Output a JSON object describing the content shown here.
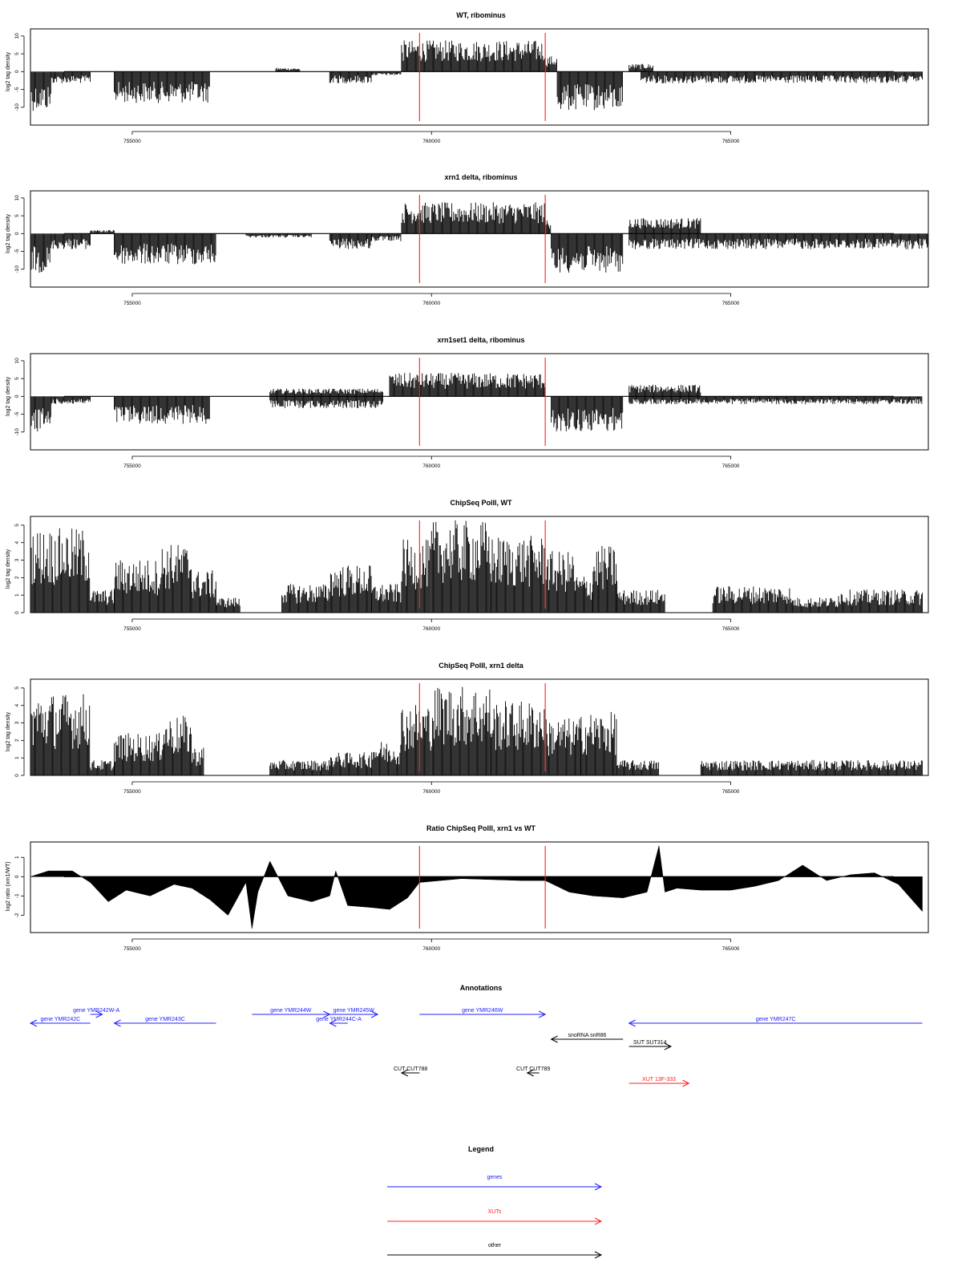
{
  "chart_data": [
    {
      "type": "area",
      "title": "WT, ribominus",
      "ylabel": "log2 tag density",
      "xlim": [
        753300,
        768300
      ],
      "ylim": [
        -15,
        12
      ],
      "xticks": [
        755000,
        760000,
        765000
      ],
      "yticks": [
        -10,
        -5,
        0,
        5,
        10
      ],
      "markers": [
        759800,
        761900
      ],
      "segments": [
        {
          "x": [
            753300,
            753650
          ],
          "y": -10
        },
        {
          "x": [
            753650,
            754300
          ],
          "y": -3
        },
        {
          "x": [
            754700,
            756300
          ],
          "y": -8
        },
        {
          "x": [
            757400,
            757800
          ],
          "y": 1
        },
        {
          "x": [
            758300,
            759000
          ],
          "y": -3
        },
        {
          "x": [
            759000,
            759500
          ],
          "y": -1
        },
        {
          "x": [
            759500,
            761900
          ],
          "y": 8
        },
        {
          "x": [
            761900,
            762100
          ],
          "y": 4
        },
        {
          "x": [
            762100,
            763200
          ],
          "y": -10
        },
        {
          "x": [
            763300,
            763700
          ],
          "y": 2
        },
        {
          "x": [
            763500,
            768200
          ],
          "y": -3
        }
      ]
    },
    {
      "type": "area",
      "title": "xrn1 delta, ribominus",
      "ylabel": "log2 tag density",
      "xlim": [
        753300,
        768300
      ],
      "ylim": [
        -15,
        12
      ],
      "xticks": [
        755000,
        760000,
        765000
      ],
      "yticks": [
        -10,
        -5,
        0,
        5,
        10
      ],
      "markers": [
        759800,
        761900
      ],
      "segments": [
        {
          "x": [
            753300,
            753650
          ],
          "y": -10
        },
        {
          "x": [
            753650,
            754300
          ],
          "y": -4
        },
        {
          "x": [
            754300,
            754700
          ],
          "y": 1
        },
        {
          "x": [
            754700,
            756400
          ],
          "y": -8
        },
        {
          "x": [
            756900,
            758000
          ],
          "y": -1
        },
        {
          "x": [
            758300,
            759000
          ],
          "y": -4
        },
        {
          "x": [
            759000,
            759500
          ],
          "y": -2
        },
        {
          "x": [
            759500,
            761900
          ],
          "y": 8
        },
        {
          "x": [
            761900,
            762000
          ],
          "y": 4
        },
        {
          "x": [
            762000,
            763200
          ],
          "y": -10
        },
        {
          "x": [
            763300,
            764500
          ],
          "y": 4
        },
        {
          "x": [
            763300,
            768300
          ],
          "y": -4
        }
      ]
    },
    {
      "type": "area",
      "title": "xrn1set1 delta, ribominus",
      "ylabel": "log2 tag density",
      "xlim": [
        753300,
        768300
      ],
      "ylim": [
        -15,
        12
      ],
      "xticks": [
        755000,
        760000,
        765000
      ],
      "yticks": [
        -10,
        -5,
        0,
        5,
        10
      ],
      "markers": [
        759800,
        761900
      ],
      "segments": [
        {
          "x": [
            753300,
            753650
          ],
          "y": -9
        },
        {
          "x": [
            753650,
            754300
          ],
          "y": -2
        },
        {
          "x": [
            754700,
            756300
          ],
          "y": -7
        },
        {
          "x": [
            757300,
            759200
          ],
          "y": 2
        },
        {
          "x": [
            757300,
            759200
          ],
          "y": -3
        },
        {
          "x": [
            759300,
            761900
          ],
          "y": 6
        },
        {
          "x": [
            762000,
            763200
          ],
          "y": -9
        },
        {
          "x": [
            763300,
            764500
          ],
          "y": 3
        },
        {
          "x": [
            763300,
            768200
          ],
          "y": -2
        }
      ]
    },
    {
      "type": "bar",
      "title": "ChipSeq PolII, WT",
      "ylabel": "log2 tag density",
      "xlim": [
        753300,
        768300
      ],
      "ylim": [
        0,
        5.5
      ],
      "xticks": [
        755000,
        760000,
        765000
      ],
      "yticks": [
        0,
        1,
        2,
        3,
        4,
        5
      ],
      "markers": [
        759800,
        761900
      ],
      "segments": [
        {
          "x": [
            753300,
            754300
          ],
          "y": 4.4
        },
        {
          "x": [
            754300,
            754700
          ],
          "y": 1.2
        },
        {
          "x": [
            754700,
            755500
          ],
          "y": 2.8
        },
        {
          "x": [
            755500,
            756000
          ],
          "y": 3.6
        },
        {
          "x": [
            756000,
            756400
          ],
          "y": 2.2
        },
        {
          "x": [
            756400,
            756800
          ],
          "y": 0.8
        },
        {
          "x": [
            757500,
            758300
          ],
          "y": 1.5
        },
        {
          "x": [
            758300,
            759000
          ],
          "y": 2.5
        },
        {
          "x": [
            759000,
            759500
          ],
          "y": 1.5
        },
        {
          "x": [
            759500,
            760000
          ],
          "y": 3.8
        },
        {
          "x": [
            760000,
            761000
          ],
          "y": 4.8
        },
        {
          "x": [
            761000,
            761900
          ],
          "y": 4.0
        },
        {
          "x": [
            761900,
            762400
          ],
          "y": 3.2
        },
        {
          "x": [
            762400,
            762700
          ],
          "y": 2.0
        },
        {
          "x": [
            762700,
            763100
          ],
          "y": 3.5
        },
        {
          "x": [
            763100,
            763900
          ],
          "y": 1.2
        },
        {
          "x": [
            764700,
            766000
          ],
          "y": 1.4
        },
        {
          "x": [
            766000,
            766800
          ],
          "y": 0.8
        },
        {
          "x": [
            766800,
            768200
          ],
          "y": 1.2
        }
      ]
    },
    {
      "type": "bar",
      "title": "ChipSeq PolII, xrn1 delta",
      "ylabel": "log2 tag density",
      "xlim": [
        753300,
        768300
      ],
      "ylim": [
        0,
        5.5
      ],
      "xticks": [
        755000,
        760000,
        765000
      ],
      "yticks": [
        0,
        1,
        2,
        3,
        4,
        5
      ],
      "markers": [
        759800,
        761900
      ],
      "segments": [
        {
          "x": [
            753300,
            754300
          ],
          "y": 4.3
        },
        {
          "x": [
            754300,
            754700
          ],
          "y": 0.8
        },
        {
          "x": [
            754700,
            755500
          ],
          "y": 2.2
        },
        {
          "x": [
            755500,
            756000
          ],
          "y": 3.1
        },
        {
          "x": [
            756000,
            756200
          ],
          "y": 1.5
        },
        {
          "x": [
            757300,
            758300
          ],
          "y": 0.8
        },
        {
          "x": [
            758300,
            759000
          ],
          "y": 1.2
        },
        {
          "x": [
            759000,
            759500
          ],
          "y": 1.8
        },
        {
          "x": [
            759500,
            760000
          ],
          "y": 3.8
        },
        {
          "x": [
            760000,
            761000
          ],
          "y": 4.7
        },
        {
          "x": [
            761000,
            761900
          ],
          "y": 3.9
        },
        {
          "x": [
            761900,
            762500
          ],
          "y": 3.0
        },
        {
          "x": [
            762500,
            763100
          ],
          "y": 3.3
        },
        {
          "x": [
            763100,
            763800
          ],
          "y": 0.8
        },
        {
          "x": [
            764500,
            768200
          ],
          "y": 0.8
        }
      ]
    },
    {
      "type": "area",
      "title": "Ratio ChipSeq PolII, xrn1 vs WT",
      "ylabel": "log2 ratio (xrn1/WT)",
      "xlim": [
        753300,
        768300
      ],
      "ylim": [
        -2.9,
        1.8
      ],
      "xticks": [
        755000,
        760000,
        765000
      ],
      "yticks": [
        -2,
        -1,
        0,
        1
      ],
      "markers": [
        759800,
        761900
      ],
      "x": [
        753300,
        753600,
        754000,
        754300,
        754600,
        754900,
        755300,
        755700,
        756000,
        756300,
        756600,
        756900,
        757000,
        757100,
        757300,
        757600,
        758000,
        758300,
        758400,
        758600,
        759000,
        759300,
        759600,
        759800,
        760500,
        761500,
        761900,
        762300,
        762700,
        763200,
        763600,
        763800,
        763900,
        764100,
        764500,
        765000,
        765400,
        765800,
        766200,
        766600,
        767000,
        767400,
        767800,
        768200
      ],
      "y": [
        0.0,
        0.3,
        0.3,
        -0.3,
        -1.3,
        -0.7,
        -1.0,
        -0.4,
        -0.6,
        -1.2,
        -2.0,
        -0.3,
        -2.7,
        -0.8,
        0.8,
        -1.0,
        -1.3,
        -1.0,
        0.3,
        -1.5,
        -1.6,
        -1.7,
        -1.1,
        -0.3,
        -0.1,
        -0.2,
        -0.2,
        -0.8,
        -1.0,
        -1.1,
        -0.8,
        1.6,
        -0.8,
        -0.6,
        -0.7,
        -0.7,
        -0.5,
        -0.2,
        0.6,
        -0.2,
        0.1,
        0.2,
        -0.4,
        -1.8
      ]
    }
  ],
  "annotations": {
    "title": "Annotations",
    "colors": {
      "gene": "#2020ff",
      "xut": "#ff2020",
      "other": "#000000"
    },
    "items": [
      {
        "label": "gene YMR242C",
        "start": 753300,
        "end": 754300,
        "dir": "left",
        "kind": "gene",
        "row": 1
      },
      {
        "label": "gene YMR242W-A",
        "start": 754300,
        "end": 754500,
        "dir": "right",
        "kind": "gene",
        "row": 0
      },
      {
        "label": "gene YMR243C",
        "start": 754700,
        "end": 756400,
        "dir": "left",
        "kind": "gene",
        "row": 1
      },
      {
        "label": "gene YMR244W",
        "start": 757000,
        "end": 758300,
        "dir": "right",
        "kind": "gene",
        "row": 0
      },
      {
        "label": "gene YMR244C-A",
        "start": 758300,
        "end": 758600,
        "dir": "left",
        "kind": "gene",
        "row": 1
      },
      {
        "label": "gene YMR245W",
        "start": 758300,
        "end": 759100,
        "dir": "right",
        "kind": "gene",
        "row": 0
      },
      {
        "label": "gene YMR246W",
        "start": 759800,
        "end": 761900,
        "dir": "right",
        "kind": "gene",
        "row": 0
      },
      {
        "label": "gene YMR247C",
        "start": 763300,
        "end": 768200,
        "dir": "left",
        "kind": "gene",
        "row": 1
      },
      {
        "label": "snoRNA snR86",
        "start": 762000,
        "end": 763200,
        "dir": "left",
        "kind": "other",
        "row": 2
      },
      {
        "label": "SUT SUT314",
        "start": 763300,
        "end": 764000,
        "dir": "right",
        "kind": "other",
        "row": 3
      },
      {
        "label": "CUT CUT788",
        "start": 759500,
        "end": 759800,
        "dir": "left",
        "kind": "other",
        "row": 4
      },
      {
        "label": "CUT CUT789",
        "start": 761600,
        "end": 761800,
        "dir": "left",
        "kind": "other",
        "row": 4
      },
      {
        "label": "XUT 13F-333",
        "start": 763300,
        "end": 764300,
        "dir": "right",
        "kind": "xut",
        "row": 5
      }
    ]
  },
  "legend": {
    "title": "Legend",
    "items": [
      {
        "label": "genes",
        "kind": "gene"
      },
      {
        "label": "XUTs",
        "kind": "xut"
      },
      {
        "label": "other",
        "kind": "other"
      }
    ]
  }
}
